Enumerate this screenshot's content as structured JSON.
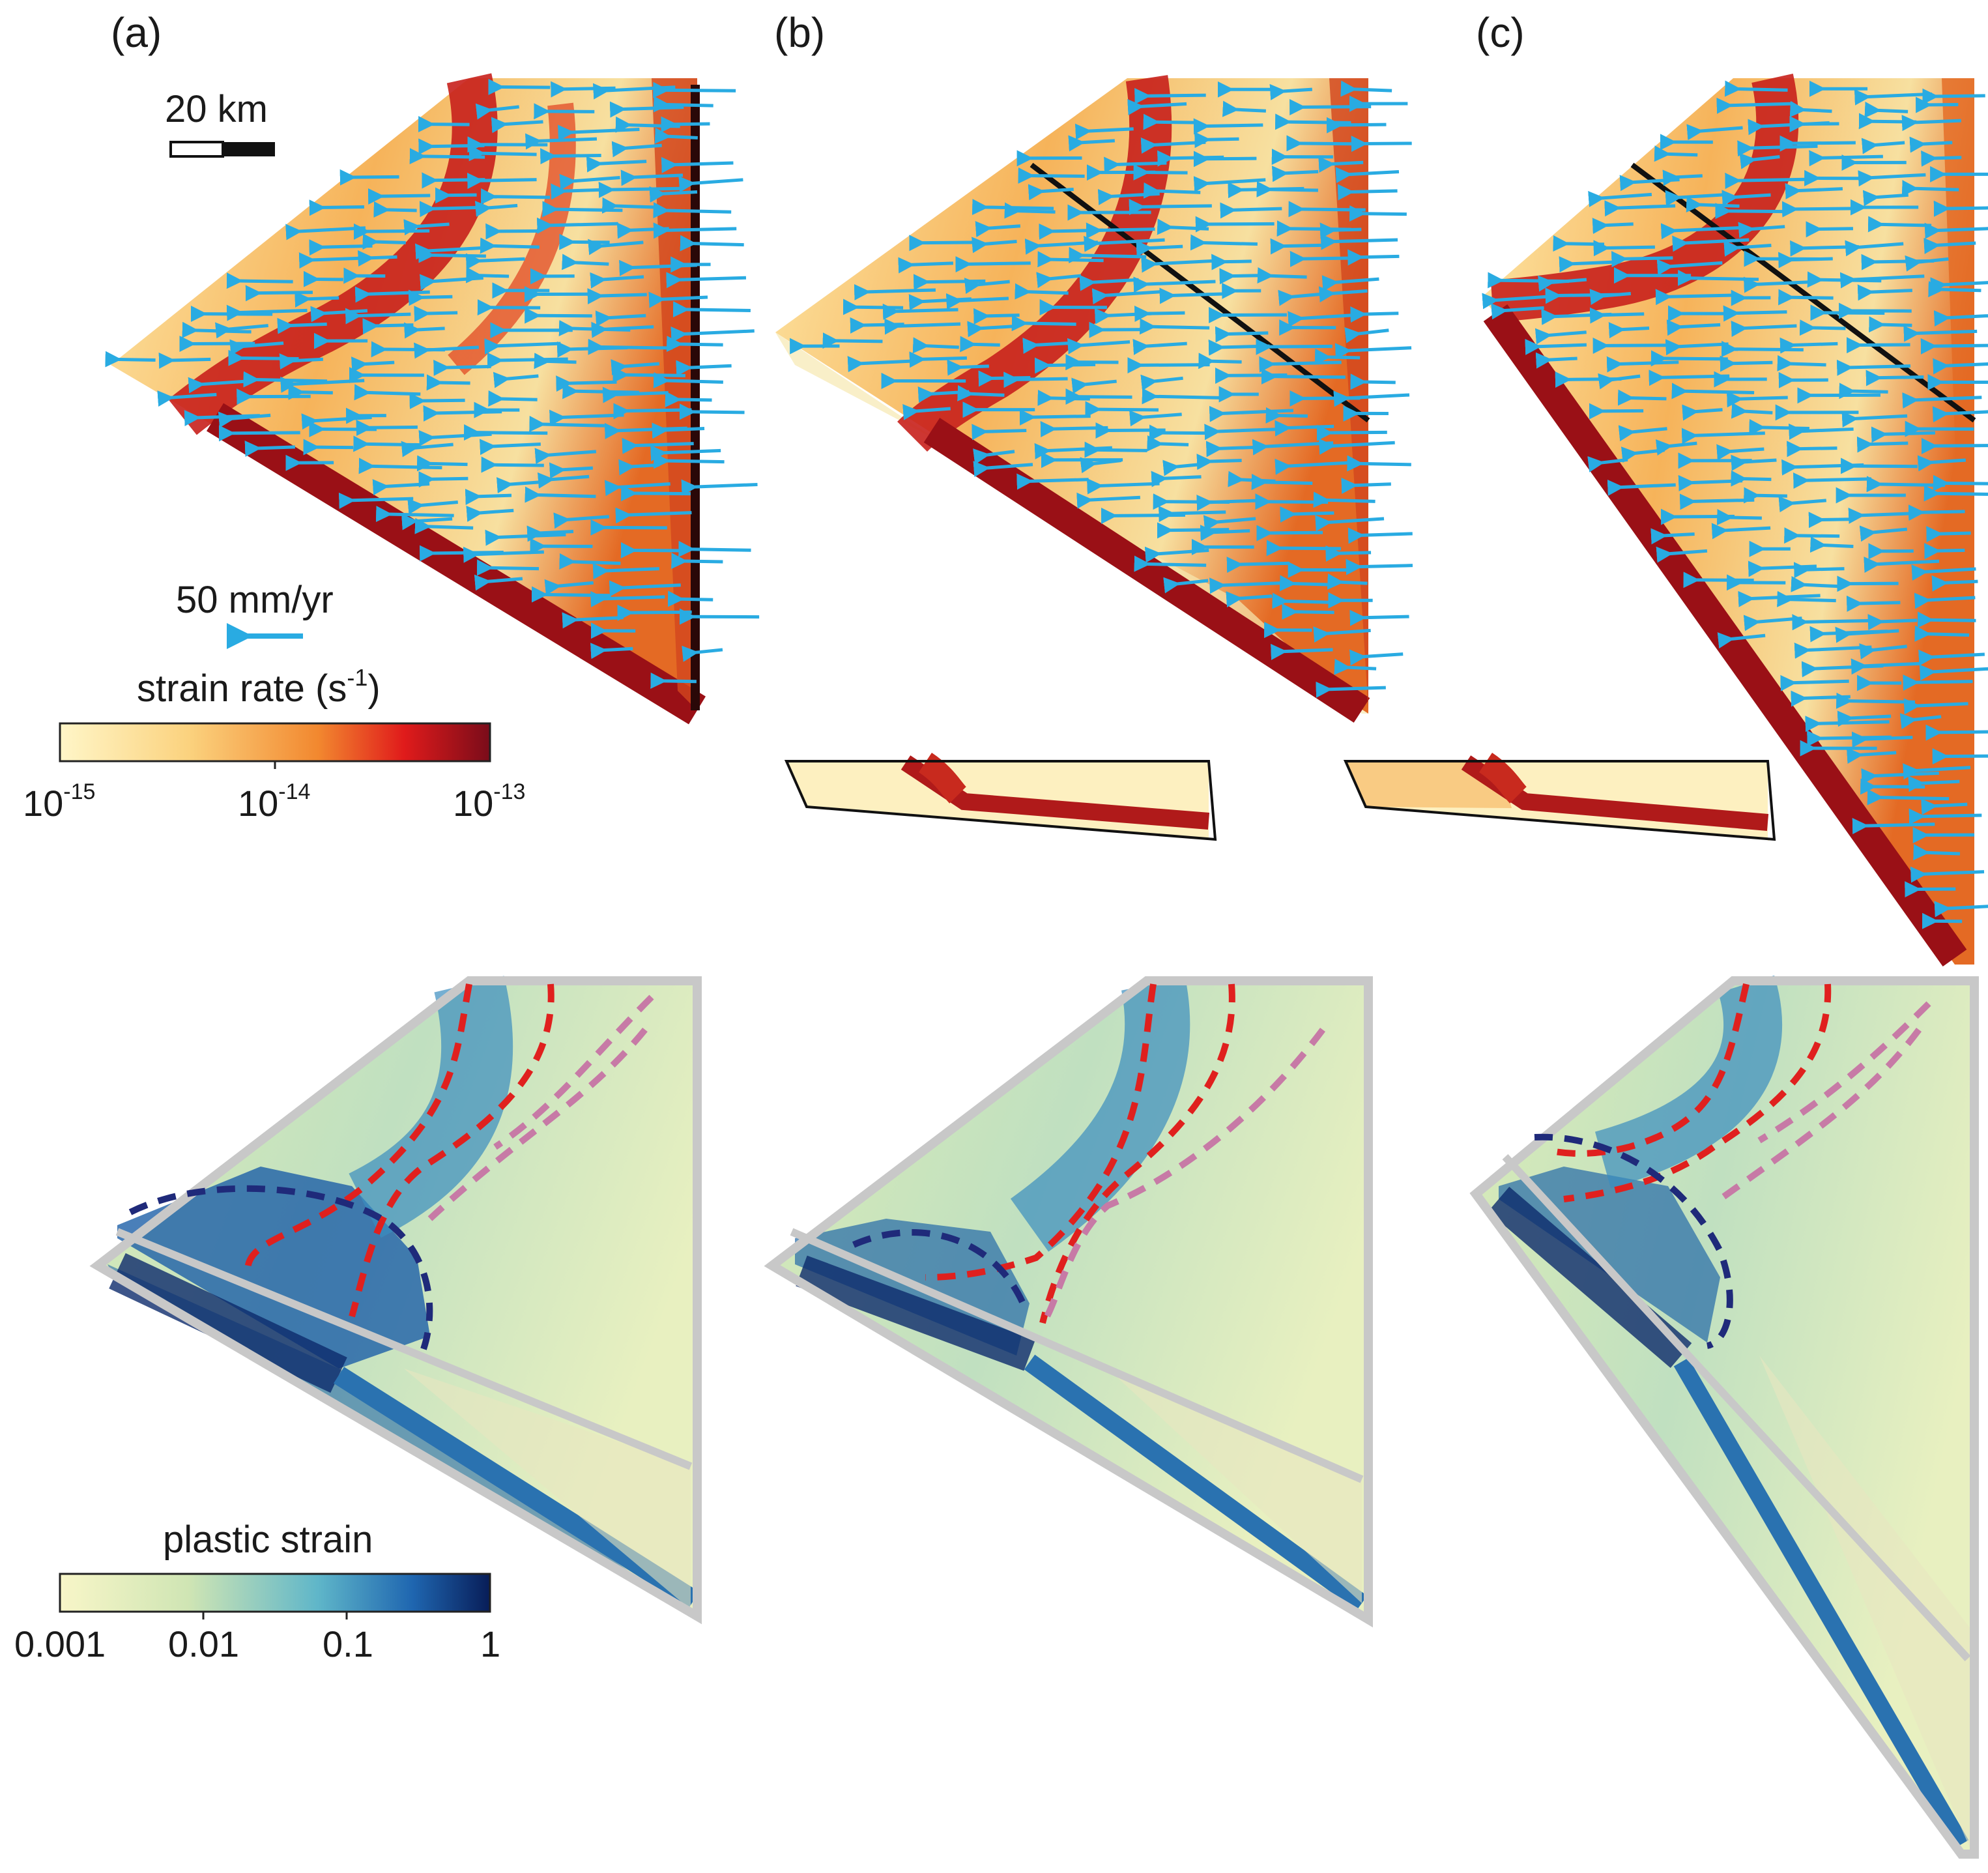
{
  "panels": [
    {
      "id": "a",
      "label": "(a)"
    },
    {
      "id": "b",
      "label": "(b)"
    },
    {
      "id": "c",
      "label": "(c)"
    }
  ],
  "scale_bar": {
    "label": "20 km"
  },
  "velocity_legend": {
    "label": "50 mm/yr",
    "arrow_color": "#29abe2"
  },
  "strain_rate_colorbar": {
    "title_prefix": "strain rate (s",
    "title_exp": "-1",
    "title_suffix": ")",
    "ticks": [
      {
        "base": "10",
        "exp": "-15"
      },
      {
        "base": "10",
        "exp": "-14"
      },
      {
        "base": "10",
        "exp": "-13"
      }
    ],
    "colors": [
      "#fff6c8",
      "#fbd27e",
      "#f2882f",
      "#e01b1b",
      "#7a0c1a"
    ]
  },
  "plastic_strain_colorbar": {
    "title": "plastic strain",
    "ticks": [
      "0.001",
      "0.01",
      "0.1",
      "1"
    ],
    "colors": [
      "#f8f6c8",
      "#cfe5b4",
      "#5fb6c9",
      "#1f66b0",
      "#081d58"
    ]
  },
  "overlay_colors": {
    "red_dashed": "#e0201e",
    "pink_dashed": "#c77aa6",
    "navy_dashed": "#1f2a7a",
    "outline_gray": "#c8c8c8",
    "section_line": "#111111"
  }
}
